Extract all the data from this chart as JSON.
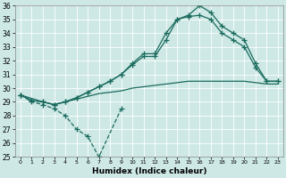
{
  "xlabel": "Humidex (Indice chaleur)",
  "xlim": [
    -0.5,
    23.5
  ],
  "ylim": [
    25,
    36
  ],
  "yticks": [
    25,
    26,
    27,
    28,
    29,
    30,
    31,
    32,
    33,
    34,
    35,
    36
  ],
  "xticks": [
    0,
    1,
    2,
    3,
    4,
    5,
    6,
    7,
    8,
    9,
    10,
    11,
    12,
    13,
    14,
    15,
    16,
    17,
    18,
    19,
    20,
    21,
    22,
    23
  ],
  "bg_color": "#cde8e5",
  "line_color": "#1a6b5e",
  "line1_x": [
    0,
    1,
    2,
    3,
    4,
    5,
    6,
    7,
    9
  ],
  "line1_y": [
    29.5,
    29.0,
    28.8,
    28.5,
    28.0,
    27.0,
    26.5,
    25.0,
    28.5
  ],
  "line2_x": [
    0,
    1,
    2,
    3,
    4,
    5,
    6,
    7,
    8,
    9,
    10,
    11,
    12,
    13,
    14,
    15,
    16,
    17,
    18,
    19,
    20,
    21,
    22,
    23
  ],
  "line2_y": [
    29.5,
    29.1,
    29.0,
    28.8,
    29.0,
    29.2,
    29.4,
    29.6,
    29.7,
    29.8,
    30.0,
    30.1,
    30.2,
    30.3,
    30.4,
    30.5,
    30.5,
    30.5,
    30.5,
    30.5,
    30.5,
    30.4,
    30.3,
    30.3
  ],
  "line3_x": [
    0,
    1,
    2,
    3,
    4,
    5,
    6,
    7,
    8,
    9,
    10,
    11,
    12,
    13,
    14,
    15,
    16,
    17,
    18,
    19,
    20,
    21,
    22,
    23
  ],
  "line3_y": [
    29.5,
    29.1,
    29.0,
    28.8,
    29.0,
    29.3,
    29.7,
    30.1,
    30.5,
    31.0,
    31.7,
    32.3,
    32.3,
    33.5,
    35.0,
    35.2,
    35.3,
    35.0,
    34.0,
    33.5,
    33.0,
    31.5,
    30.5,
    30.5
  ],
  "line4_x": [
    0,
    2,
    3,
    4,
    5,
    6,
    7,
    8,
    9,
    10,
    11,
    12,
    13,
    14,
    15,
    16,
    17,
    18,
    19,
    20,
    21,
    22,
    23
  ],
  "line4_y": [
    29.5,
    29.0,
    28.8,
    29.0,
    29.3,
    29.7,
    30.1,
    30.5,
    31.0,
    31.8,
    32.5,
    32.5,
    34.0,
    35.0,
    35.3,
    36.0,
    35.5,
    34.5,
    34.0,
    33.5,
    31.8,
    30.5,
    30.5
  ]
}
